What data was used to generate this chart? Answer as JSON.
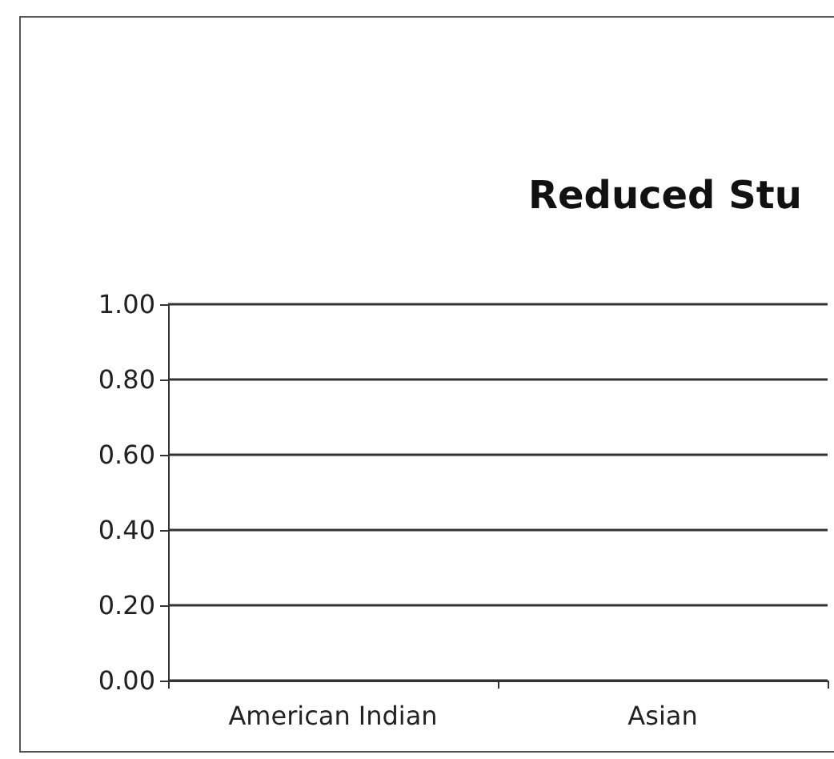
{
  "chart_data": {
    "type": "bar",
    "title": "Reduced Stu",
    "categories": [
      "American Indian",
      "Asian"
    ],
    "values": [
      0,
      0
    ],
    "ylim": [
      0,
      1
    ],
    "yticks": [
      {
        "value": 0,
        "label": "0.00"
      },
      {
        "value": 0.2,
        "label": "0.20"
      },
      {
        "value": 0.4,
        "label": "0.40"
      },
      {
        "value": 0.6,
        "label": "0.60"
      },
      {
        "value": 0.8,
        "label": "0.80"
      },
      {
        "value": 1,
        "label": "1.00"
      }
    ],
    "grid": true
  }
}
